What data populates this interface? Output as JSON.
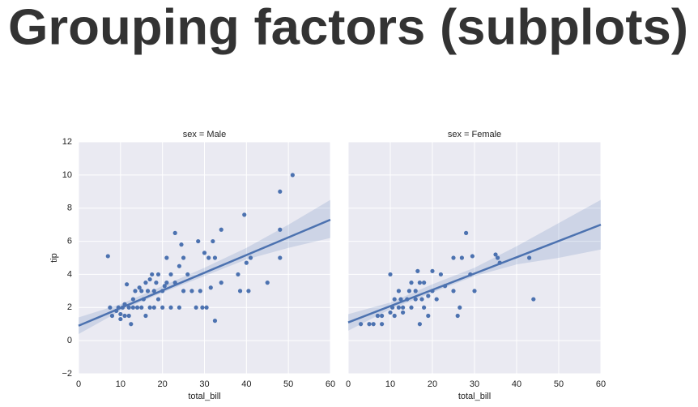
{
  "title": "Grouping factors (subplots)",
  "chart_data": [
    {
      "type": "scatter",
      "title": "sex = Male",
      "x_label": "total_bill",
      "y_label": "tip",
      "xlim": [
        0,
        60
      ],
      "ylim": [
        -2,
        12
      ],
      "xticks": [
        0,
        10,
        20,
        30,
        40,
        50,
        60
      ],
      "yticks": [
        {
          "value": -2,
          "label": "−2"
        },
        0,
        2,
        4,
        6,
        8,
        10,
        12
      ],
      "grid": true,
      "color": "#4c72b0",
      "x": [
        7,
        7.5,
        8,
        9,
        9.5,
        10,
        10,
        10.5,
        11,
        11,
        11.5,
        12,
        12,
        12.5,
        13,
        13,
        13.5,
        14,
        14.5,
        15,
        15,
        15.5,
        16,
        16,
        16.5,
        17,
        17,
        17.5,
        18,
        18,
        18.5,
        19,
        19,
        20,
        20,
        20.5,
        21,
        21,
        22,
        22,
        23,
        23,
        24,
        24,
        24.5,
        25,
        25,
        26,
        27,
        28,
        28.5,
        29,
        29.5,
        30,
        30.5,
        31,
        31.5,
        32,
        32.5,
        32.5,
        34,
        34,
        38,
        38.5,
        39.5,
        40,
        40.5,
        41,
        45,
        48,
        48,
        48,
        51
      ],
      "values": [
        5.1,
        2,
        1.5,
        1.8,
        2,
        1.3,
        1.6,
        2,
        1.5,
        2.2,
        3.4,
        1.5,
        2,
        1,
        2.5,
        2,
        3,
        2,
        3.2,
        2,
        3,
        2.5,
        1.5,
        3.5,
        3,
        2,
        3.7,
        4,
        3,
        2,
        3.5,
        4,
        2.5,
        3,
        2,
        3.3,
        5,
        3.5,
        4,
        2,
        3.5,
        6.5,
        2,
        4.5,
        5.8,
        5,
        3,
        4,
        3,
        2,
        6,
        3,
        2,
        5.3,
        2,
        5,
        3.2,
        6,
        1.2,
        5,
        3.5,
        6.7,
        4,
        3,
        7.6,
        4.7,
        3,
        5,
        3.5,
        9,
        6.7,
        5,
        10
      ],
      "fit": {
        "x": [
          0,
          60
        ],
        "values": [
          0.9,
          7.3
        ]
      },
      "band": {
        "x": [
          0,
          10,
          20,
          30,
          40,
          50,
          60
        ],
        "lower": [
          0.4,
          1.8,
          2.9,
          3.9,
          4.9,
          5.6,
          6.2
        ],
        "upper": [
          1.4,
          2.2,
          3.3,
          4.4,
          5.6,
          7.0,
          8.5
        ]
      }
    },
    {
      "type": "scatter",
      "title": "sex = Female",
      "x_label": "total_bill",
      "xlim": [
        0,
        60
      ],
      "ylim": [
        -2,
        12
      ],
      "xticks": [
        0,
        10,
        20,
        30,
        40,
        50,
        60
      ],
      "grid": true,
      "color": "#4c72b0",
      "x": [
        3,
        5,
        6,
        7,
        8,
        8,
        10,
        10,
        10.5,
        11,
        11,
        12,
        12,
        12.5,
        13,
        13,
        14,
        14.5,
        15,
        15,
        16,
        16,
        16.5,
        17,
        17,
        17.5,
        18,
        18,
        19,
        19,
        20,
        20,
        21,
        22,
        23,
        25,
        25,
        26,
        26.5,
        27,
        28,
        29,
        29.5,
        30,
        35,
        35.5,
        36,
        43,
        44
      ],
      "values": [
        1,
        1,
        1,
        1.5,
        1,
        1.5,
        4,
        1.7,
        2,
        1.5,
        2.5,
        2,
        3,
        2.5,
        1.7,
        2,
        2.5,
        3,
        3.5,
        2,
        3,
        2.5,
        4.2,
        3.5,
        1,
        2.5,
        3.5,
        2,
        1.5,
        2.7,
        4.2,
        3,
        2.5,
        4,
        3.3,
        5,
        3,
        1.5,
        2,
        5,
        6.5,
        4,
        5.1,
        3,
        5.2,
        5,
        4.7,
        5,
        2.5
      ],
      "fit": {
        "x": [
          0,
          60
        ],
        "values": [
          1.1,
          7.0
        ]
      },
      "band": {
        "x": [
          0,
          10,
          20,
          30,
          40,
          50,
          60
        ],
        "lower": [
          0.6,
          1.9,
          2.9,
          3.9,
          4.6,
          5.0,
          5.5
        ],
        "upper": [
          1.6,
          2.3,
          3.4,
          4.4,
          5.7,
          7.1,
          8.5
        ]
      }
    }
  ]
}
